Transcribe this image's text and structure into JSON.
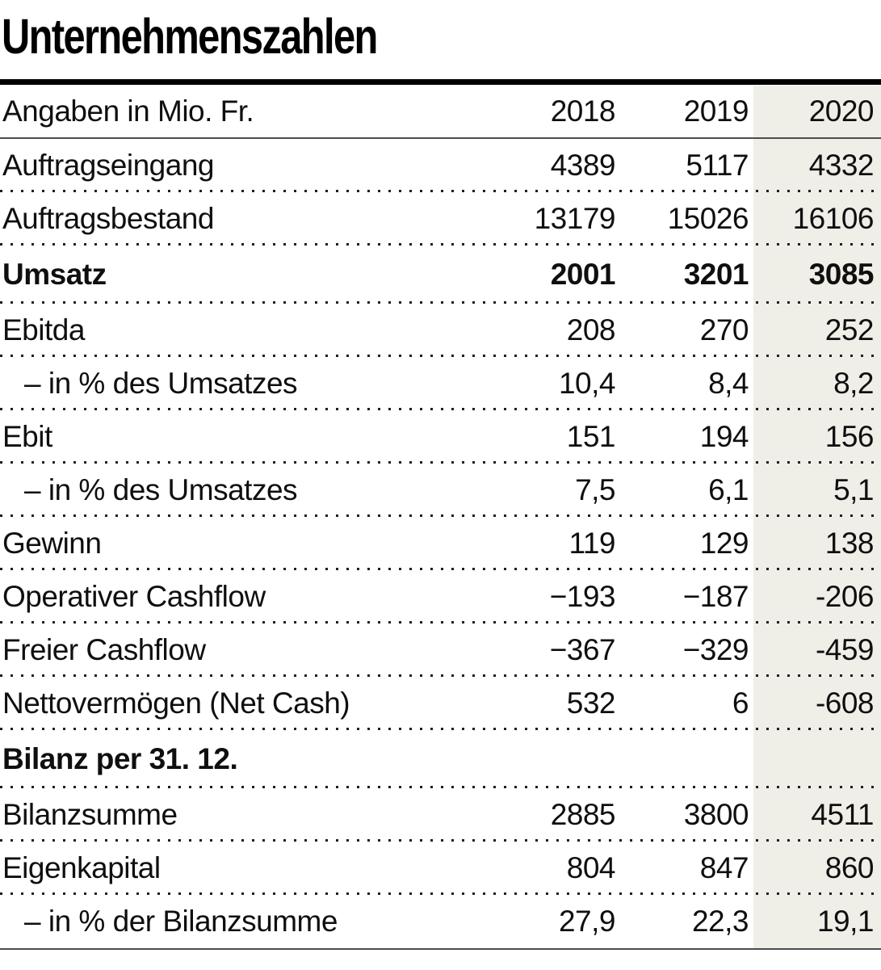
{
  "chart_data": {
    "type": "table",
    "title": "Unternehmenszahlen",
    "unit_note": "Angaben in Mio. Fr.",
    "columns": [
      "2018",
      "2019",
      "2020"
    ],
    "highlight_column": "2020",
    "highlight_color": "#efeee7",
    "rows": [
      {
        "label": "Auftragseingang",
        "values": [
          "4389",
          "5117",
          "4332"
        ],
        "bold": false,
        "indent": false
      },
      {
        "label": "Auftragsbestand",
        "values": [
          "13179",
          "15026",
          "16106"
        ],
        "bold": false,
        "indent": false
      },
      {
        "label": "Umsatz",
        "values": [
          "2001",
          "3201",
          "3085"
        ],
        "bold": true,
        "indent": false
      },
      {
        "label": "Ebitda",
        "values": [
          "208",
          "270",
          "252"
        ],
        "bold": false,
        "indent": false
      },
      {
        "label": "– in % des Umsatzes",
        "values": [
          "10,4",
          "8,4",
          "8,2"
        ],
        "bold": false,
        "indent": true
      },
      {
        "label": "Ebit",
        "values": [
          "151",
          "194",
          "156"
        ],
        "bold": false,
        "indent": false
      },
      {
        "label": "– in % des Umsatzes",
        "values": [
          "7,5",
          "6,1",
          "5,1"
        ],
        "bold": false,
        "indent": true
      },
      {
        "label": "Gewinn",
        "values": [
          "119",
          "129",
          "138"
        ],
        "bold": false,
        "indent": false
      },
      {
        "label": "Operativer Cashflow",
        "values": [
          "−193",
          "−187",
          "-206"
        ],
        "bold": false,
        "indent": false
      },
      {
        "label": "Freier Cashflow",
        "values": [
          "−367",
          "−329",
          "-459"
        ],
        "bold": false,
        "indent": false
      },
      {
        "label": "Nettovermögen (Net Cash)",
        "values": [
          "532",
          "6",
          "-608"
        ],
        "bold": false,
        "indent": false
      },
      {
        "label": "Bilanz per 31. 12.",
        "values": [
          "",
          "",
          ""
        ],
        "bold": true,
        "indent": false,
        "section_header": true
      },
      {
        "label": "Bilanzsumme",
        "values": [
          "2885",
          "3800",
          "4511"
        ],
        "bold": false,
        "indent": false
      },
      {
        "label": "Eigenkapital",
        "values": [
          "804",
          "847",
          "860"
        ],
        "bold": false,
        "indent": false
      },
      {
        "label": "– in % der Bilanzsumme",
        "values": [
          "27,9",
          "22,3",
          "19,1"
        ],
        "bold": false,
        "indent": true
      }
    ]
  }
}
